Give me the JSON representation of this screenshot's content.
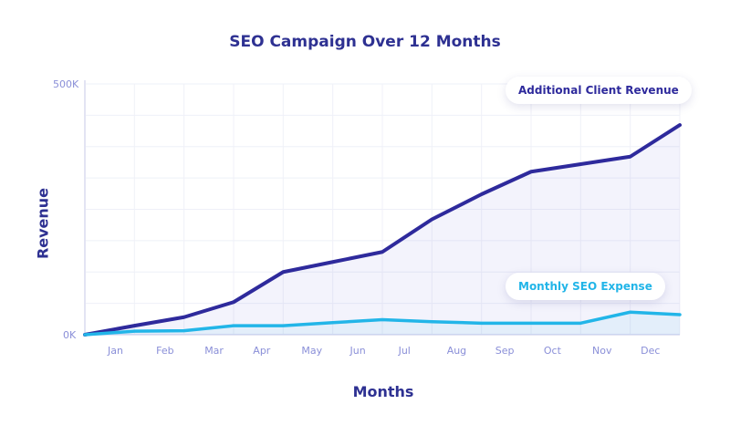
{
  "chart_data": {
    "type": "area",
    "title": "SEO Campaign Over 12 Months",
    "xlabel": "Months",
    "ylabel": "Revenue",
    "categories": [
      "Jan",
      "Feb",
      "Mar",
      "Apr",
      "May",
      "Jun",
      "Jul",
      "Aug",
      "Sep",
      "Oct",
      "Nov",
      "Dec"
    ],
    "ylim": [
      0,
      500000
    ],
    "yticks": [
      "0K",
      "500K"
    ],
    "grid": true,
    "legend_placement": "inline-right",
    "start_value": 0,
    "series": [
      {
        "name": "Additional Client Revenue",
        "color": "#2e2a9c",
        "values": [
          18000,
          35000,
          65000,
          125000,
          145000,
          165000,
          230000,
          280000,
          325000,
          340000,
          355000,
          418000
        ]
      },
      {
        "name": "Monthly SEO Expense",
        "color": "#22b5e8",
        "values": [
          7000,
          8000,
          18000,
          18000,
          24000,
          30000,
          26000,
          23000,
          23000,
          23000,
          45000,
          40000
        ]
      }
    ]
  }
}
